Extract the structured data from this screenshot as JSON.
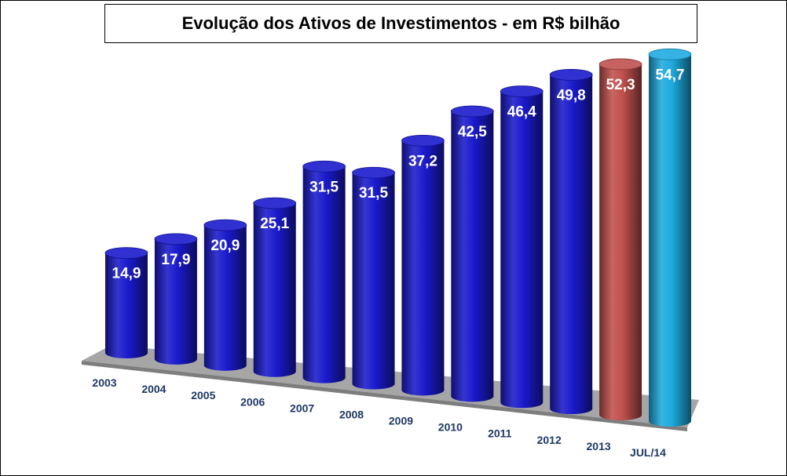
{
  "chart_data": {
    "type": "bar",
    "title": "Evolução dos Ativos de Investimentos - em R$ bilhão",
    "categories": [
      "2003",
      "2004",
      "2005",
      "2006",
      "2007",
      "2008",
      "2009",
      "2010",
      "2011",
      "2012",
      "2013",
      "JUL/14"
    ],
    "values": [
      14.9,
      17.9,
      20.9,
      25.1,
      31.5,
      31.5,
      37.2,
      42.5,
      46.4,
      49.8,
      52.3,
      54.7
    ],
    "value_labels": [
      "14,9",
      "17,9",
      "20,9",
      "25,1",
      "31,5",
      "31,5",
      "37,2",
      "42,5",
      "46,4",
      "49,8",
      "52,3",
      "54,7"
    ],
    "bar_colors": [
      "#1a1acc",
      "#1a1acc",
      "#1a1acc",
      "#1a1acc",
      "#1a1acc",
      "#1a1acc",
      "#1a1acc",
      "#1a1acc",
      "#1a1acc",
      "#1a1acc",
      "#c0504d",
      "#1eaadf"
    ],
    "style": "3d-cylinder",
    "floor_color": "#a6a6a6",
    "value_label_color": "#ffffff",
    "category_label_color": "#1f3864",
    "grid": false,
    "legend": "none"
  }
}
